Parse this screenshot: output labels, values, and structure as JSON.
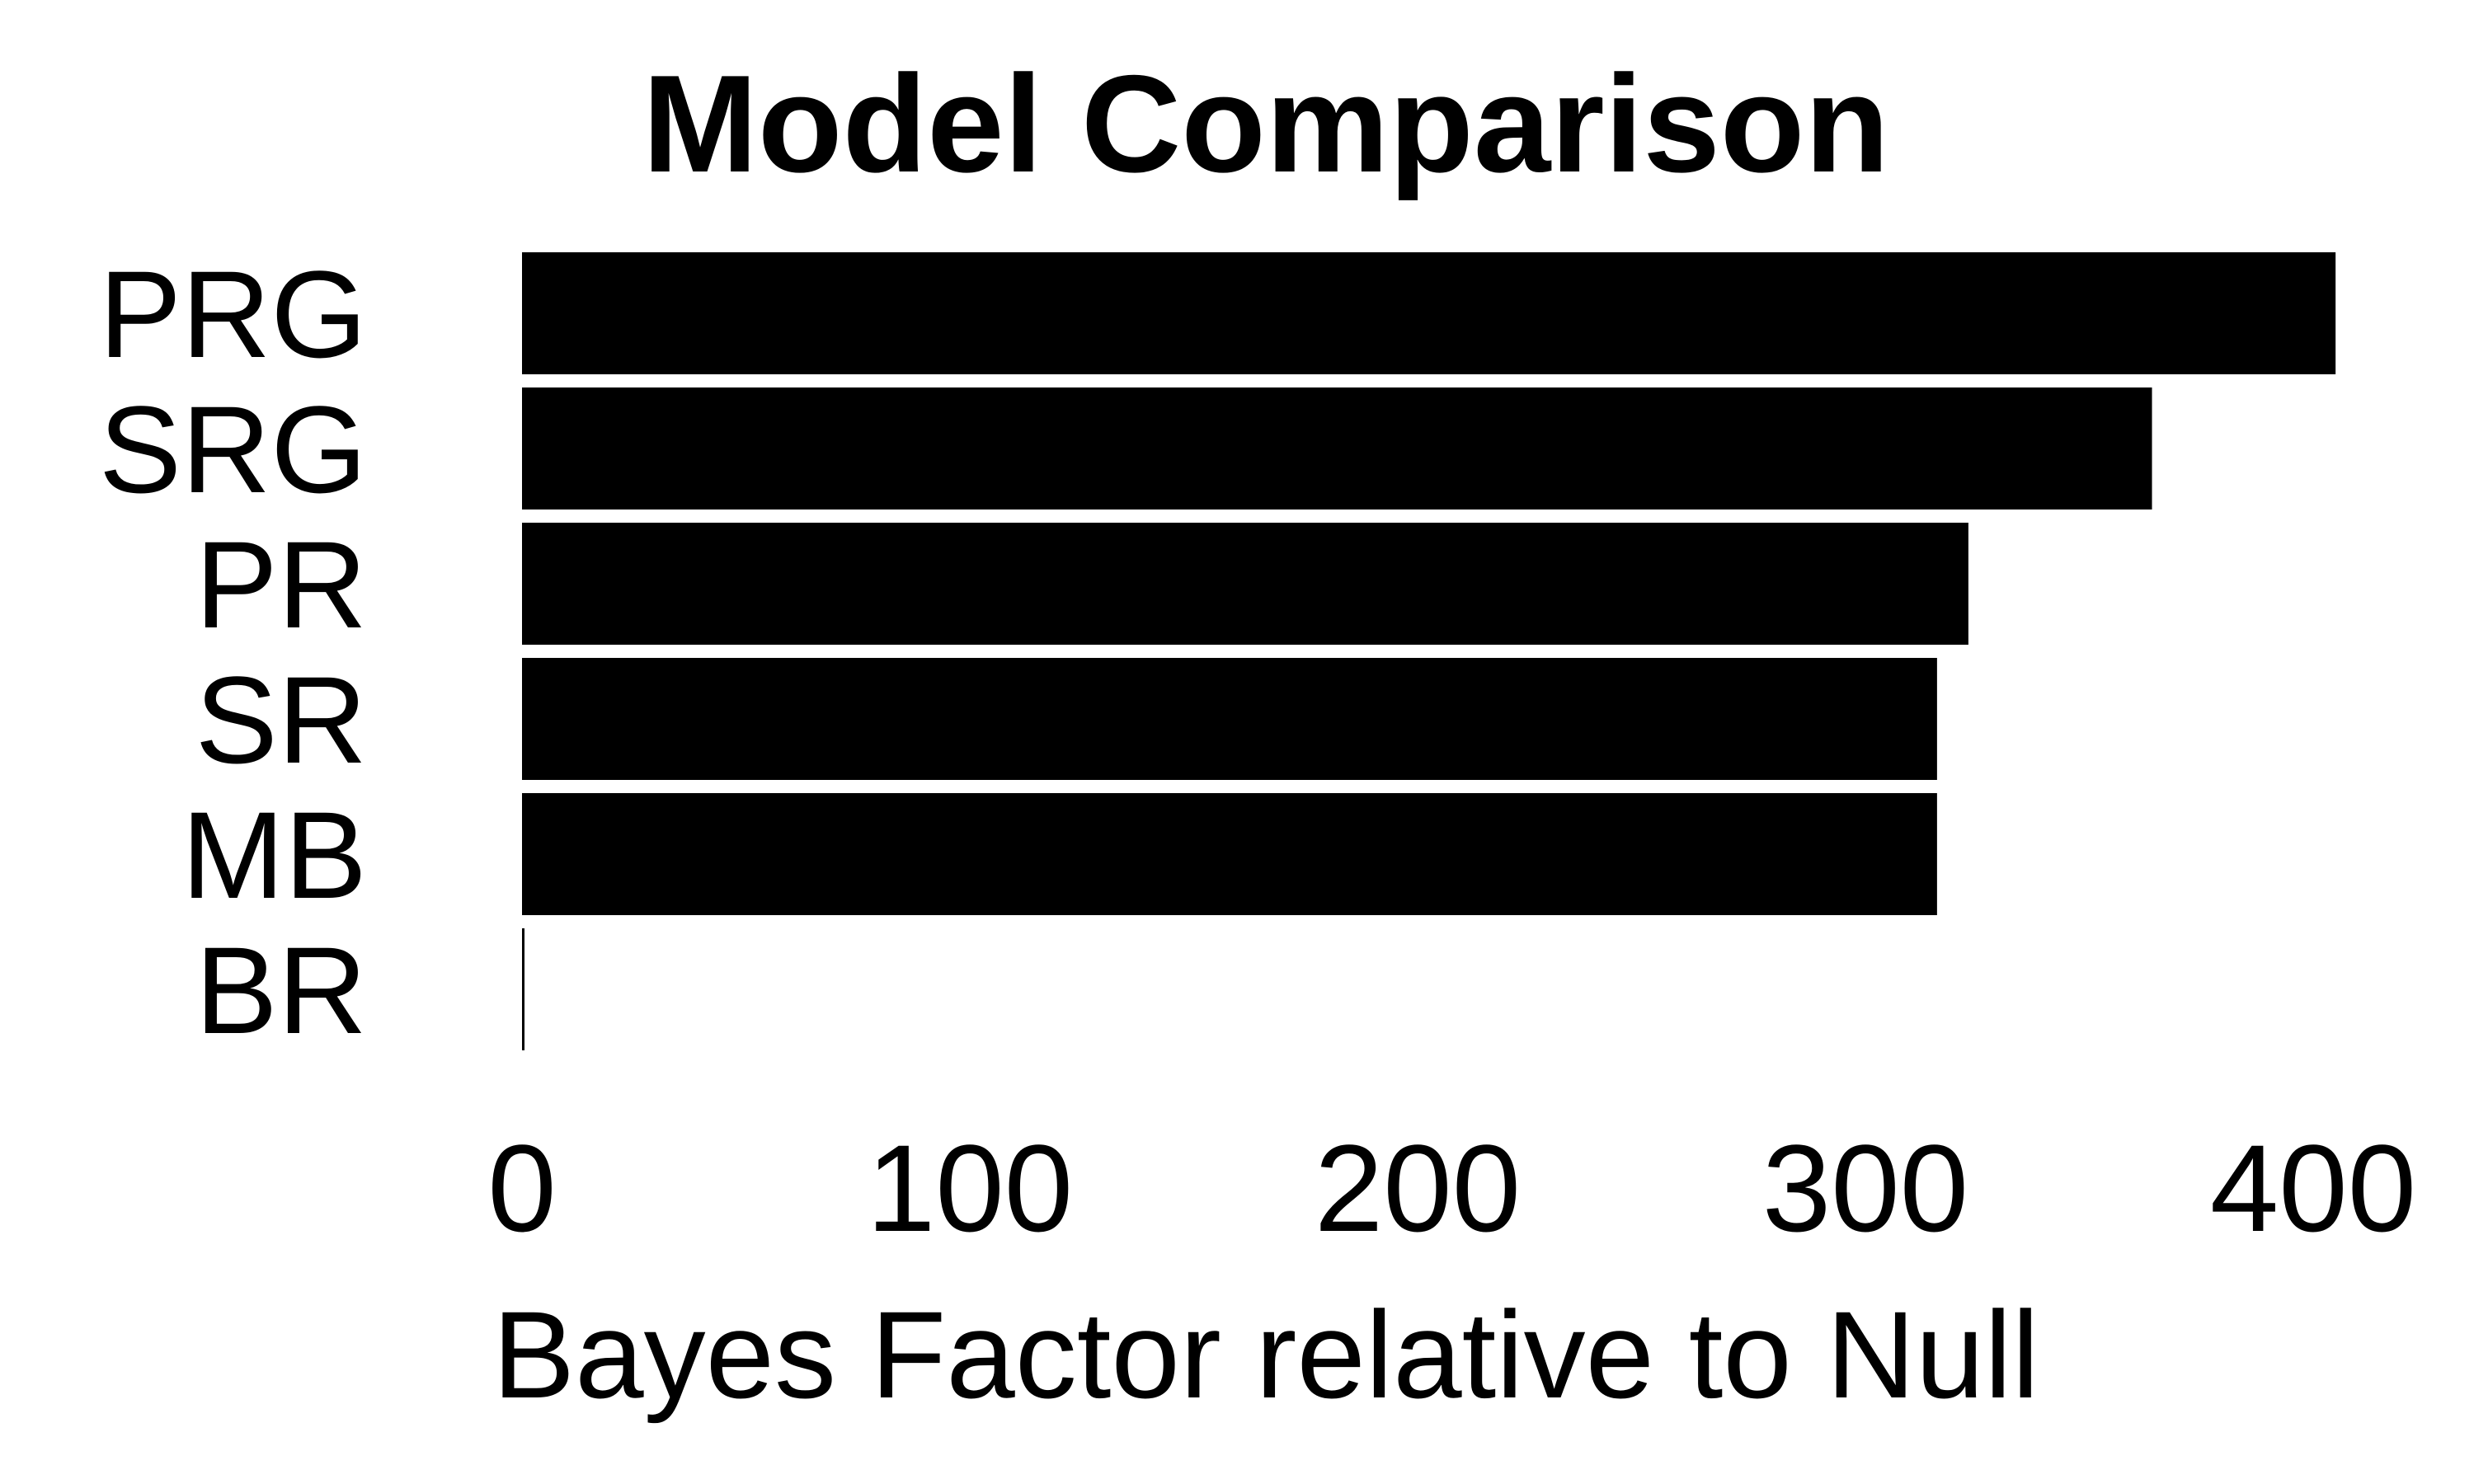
{
  "chart_data": {
    "type": "bar",
    "orientation": "horizontal",
    "title": "Model Comparison",
    "xlabel": "Bayes Factor relative to Null",
    "ylabel": "",
    "categories": [
      "PRG",
      "SRG",
      "PR",
      "SR",
      "MB",
      "BR"
    ],
    "values": [
      405,
      364,
      323,
      316,
      316,
      0.5
    ],
    "xlim": [
      0,
      400
    ],
    "xticks": [
      0,
      100,
      200,
      300,
      400
    ],
    "xtick_labels": [
      "0",
      "100",
      "200",
      "300",
      "400"
    ],
    "grid": false,
    "legend": "none",
    "bar_color": "#000000"
  }
}
